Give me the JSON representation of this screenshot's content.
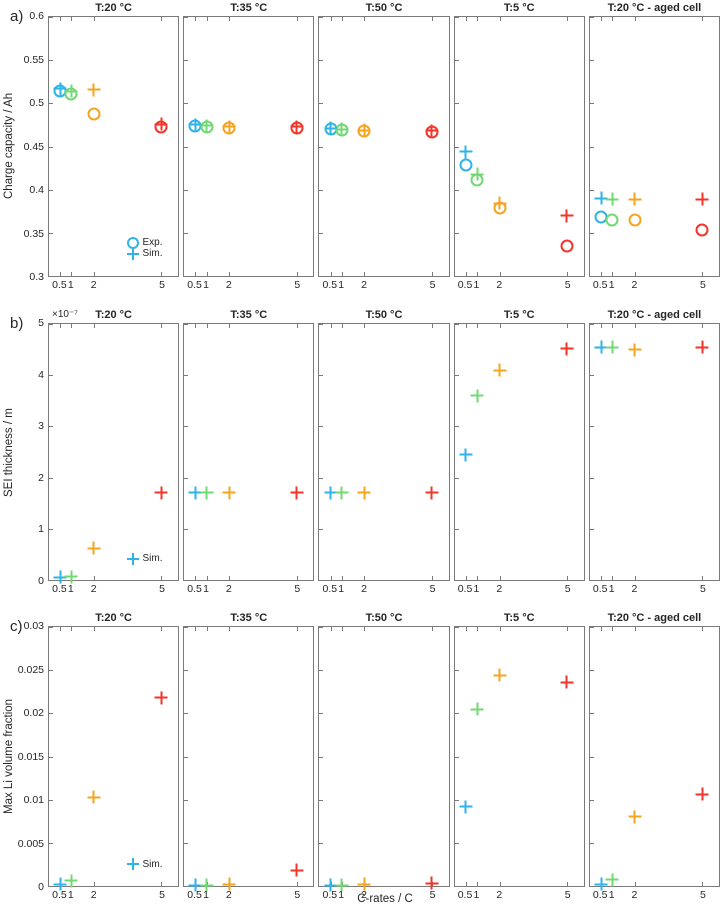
{
  "figure": {
    "panel_letters": [
      "a)",
      "b)",
      "c)"
    ],
    "series_colors": [
      "#2FB3E8",
      "#72D872",
      "#F5A41F",
      "#F2362A"
    ],
    "axis_color": "#7a7a7a",
    "text_color": "#262626"
  },
  "chart_data": [
    {
      "type": "scatter",
      "row": "a",
      "ylabel": "Charge capacity  /  Ah",
      "xlabel": "",
      "ylim": [
        0.3,
        0.6
      ],
      "yticks": [
        0.3,
        0.35,
        0.4,
        0.45,
        0.5,
        0.55,
        0.6
      ],
      "ytick_labels": [
        "0.3",
        "0.35",
        "0.4",
        "0.45",
        "0.5",
        "0.55",
        "0.6"
      ],
      "xlim": [
        0,
        5.75
      ],
      "xticks": [
        0.5,
        1,
        2,
        5
      ],
      "xtick_labels": [
        "0.5",
        "1",
        "2",
        "5"
      ],
      "c_rates": [
        0.5,
        1,
        2,
        5
      ],
      "legend": [
        {
          "marker": "circle",
          "label": "Exp."
        },
        {
          "marker": "plus",
          "label": "Sim."
        }
      ],
      "panels": [
        {
          "title": "T:20 °C",
          "exp": [
            0.514,
            0.511,
            0.488,
            0.473
          ],
          "sim": [
            0.517,
            0.514,
            0.516,
            0.476
          ]
        },
        {
          "title": "T:35 °C",
          "exp": [
            0.474,
            0.473,
            0.472,
            0.472
          ],
          "sim": [
            0.475,
            0.474,
            0.473,
            0.473
          ]
        },
        {
          "title": "T:50 °C",
          "exp": [
            0.47,
            0.469,
            0.468,
            0.467
          ],
          "sim": [
            0.471,
            0.47,
            0.469,
            0.468
          ]
        },
        {
          "title": "T:5 °C",
          "exp": [
            0.428,
            0.411,
            0.379,
            0.335
          ],
          "sim": [
            0.444,
            0.418,
            0.384,
            0.37
          ]
        },
        {
          "title": "T:20 °C - aged cell",
          "exp": [
            0.368,
            0.365,
            0.365,
            0.353
          ],
          "sim": [
            0.39,
            0.389,
            0.389,
            0.389
          ]
        }
      ]
    },
    {
      "type": "scatter",
      "row": "b",
      "ylabel": "SEI thickness  /  m",
      "xlabel": "",
      "exponent_label": "×10⁻⁷",
      "ylim": [
        0,
        5
      ],
      "yticks": [
        0,
        1,
        2,
        3,
        4,
        5
      ],
      "ytick_labels": [
        "0",
        "1",
        "2",
        "3",
        "4",
        "5"
      ],
      "xlim": [
        0,
        5.75
      ],
      "xticks": [
        0.5,
        1,
        2,
        5
      ],
      "xtick_labels": [
        "0.5",
        "1",
        "2",
        "5"
      ],
      "c_rates": [
        0.5,
        1,
        2,
        5
      ],
      "legend": [
        {
          "marker": "plus",
          "label": "Sim."
        }
      ],
      "panels": [
        {
          "title": "T:20 °C",
          "sim": [
            0.05,
            0.06,
            0.62,
            1.7
          ]
        },
        {
          "title": "T:35 °C",
          "sim": [
            1.7,
            1.7,
            1.7,
            1.7
          ]
        },
        {
          "title": "T:50 °C",
          "sim": [
            1.7,
            1.7,
            1.7,
            1.7
          ]
        },
        {
          "title": "T:5 °C",
          "sim": [
            2.45,
            3.6,
            4.1,
            4.52
          ]
        },
        {
          "title": "T:20 °C - aged cell",
          "sim": [
            4.55,
            4.55,
            4.5,
            4.55
          ]
        }
      ]
    },
    {
      "type": "scatter",
      "row": "c",
      "ylabel": "Max Li volume fraction",
      "xlabel": "C-rates  /  C",
      "ylim": [
        0,
        0.03
      ],
      "yticks": [
        0,
        0.005,
        0.01,
        0.015,
        0.02,
        0.025,
        0.03
      ],
      "ytick_labels": [
        "0",
        "0.005",
        "0.01",
        "0.015",
        "0.02",
        "0.025",
        "0.03"
      ],
      "xlim": [
        0,
        5.75
      ],
      "xticks": [
        0.5,
        1,
        2,
        5
      ],
      "xtick_labels": [
        "0.5",
        "1",
        "2",
        "5"
      ],
      "c_rates": [
        0.5,
        1,
        2,
        5
      ],
      "legend": [
        {
          "marker": "plus",
          "label": "Sim."
        }
      ],
      "panels": [
        {
          "title": "T:20 °C",
          "sim": [
            0.0002,
            0.0006,
            0.0103,
            0.0218
          ]
        },
        {
          "title": "T:35 °C",
          "sim": [
            0.0001,
            0.0001,
            0.0002,
            0.0018
          ]
        },
        {
          "title": "T:50 °C",
          "sim": [
            0.0001,
            0.0001,
            0.0002,
            0.0003
          ]
        },
        {
          "title": "T:5 °C",
          "sim": [
            0.0092,
            0.0205,
            0.0244,
            0.0236
          ]
        },
        {
          "title": "T:20 °C - aged cell",
          "sim": [
            0.0002,
            0.0007,
            0.008,
            0.0106
          ]
        }
      ]
    }
  ]
}
